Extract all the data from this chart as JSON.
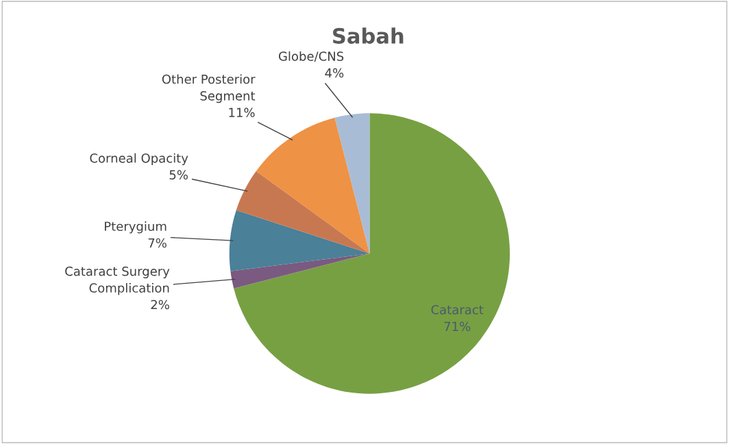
{
  "chart_data": {
    "type": "pie",
    "title": "Sabah",
    "categories": [
      "Cataract",
      "Cataract Surgery\nComplication",
      "Pterygium",
      "Corneal Opacity",
      "Other Posterior\nSegment",
      "Globe/CNS"
    ],
    "values": [
      71,
      2,
      7,
      5,
      11,
      4
    ],
    "value_labels": [
      "71%",
      "2%",
      "7%",
      "5%",
      "11%",
      "4%"
    ],
    "colors": [
      "#77a043",
      "#7a5a80",
      "#4a8098",
      "#c87850",
      "#ee9245",
      "#a9bcd6"
    ]
  }
}
